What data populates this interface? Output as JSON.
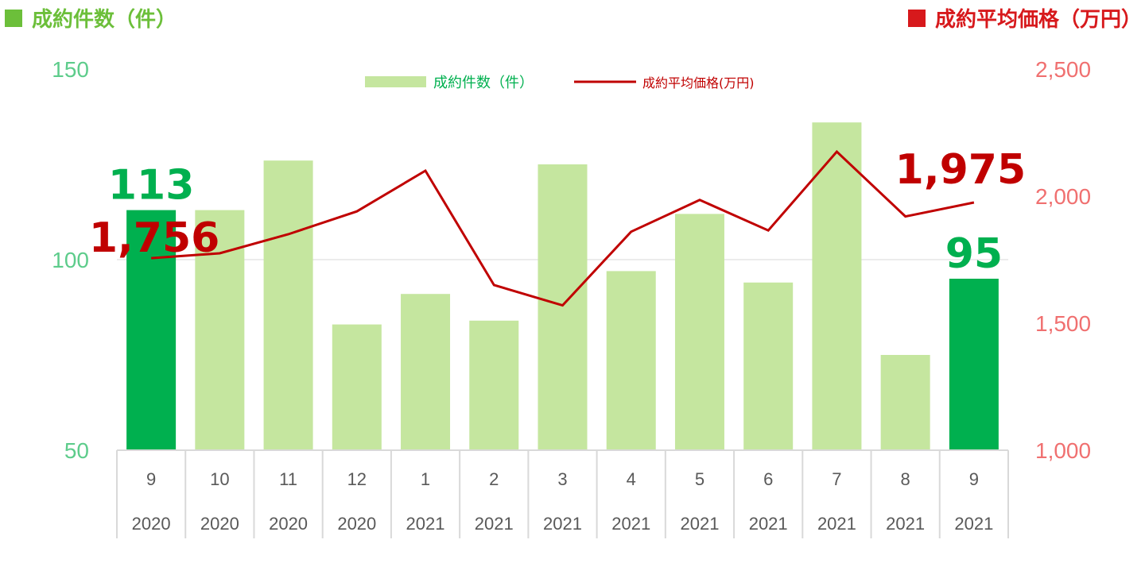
{
  "left_title": {
    "text": "成約件数（件）",
    "color": "#6cbf3a"
  },
  "right_title": {
    "text": "成約平均価格（万円）",
    "color": "#d7191c"
  },
  "chart_data": {
    "type": "bar",
    "categories": [
      "9",
      "10",
      "11",
      "12",
      "1",
      "2",
      "3",
      "4",
      "5",
      "6",
      "7",
      "8",
      "9"
    ],
    "years": [
      "2020",
      "2020",
      "2020",
      "2020",
      "2021",
      "2021",
      "2021",
      "2021",
      "2021",
      "2021",
      "2021",
      "2021",
      "2021"
    ],
    "series": [
      {
        "name": "成約件数（件）",
        "type": "bar",
        "axis": "left",
        "values": [
          113,
          113,
          126,
          83,
          91,
          84,
          125,
          97,
          112,
          94,
          136,
          75,
          95
        ],
        "color": "#c5e69f",
        "highlight_color": "#00b04f",
        "highlighted_indices": [
          0,
          12
        ]
      },
      {
        "name": "成約平均価格(万円)",
        "type": "line",
        "axis": "right",
        "values": [
          1756,
          1775,
          1850,
          1940,
          2100,
          1650,
          1570,
          1860,
          1985,
          1865,
          2175,
          1920,
          1975
        ],
        "color": "#c00000"
      }
    ],
    "left_axis": {
      "ticks": [
        "50",
        "100",
        "150"
      ],
      "ylim": [
        50,
        150
      ],
      "color": "#5dcc8b"
    },
    "right_axis": {
      "ticks": [
        "1,000",
        "1,500",
        "2,000",
        "2,500"
      ],
      "ylim": [
        1000,
        2500
      ],
      "color": "#f07070"
    },
    "data_labels": [
      {
        "series": 0,
        "index": 0,
        "text": "113",
        "color": "#00b04f"
      },
      {
        "series": 0,
        "index": 12,
        "text": "95",
        "color": "#00b04f"
      },
      {
        "series": 1,
        "index": 0,
        "text": "1,756",
        "color": "#c00000"
      },
      {
        "series": 1,
        "index": 12,
        "text": "1,975",
        "color": "#c00000"
      }
    ],
    "legend_position": "top-center",
    "gridlines": "horizontal"
  }
}
